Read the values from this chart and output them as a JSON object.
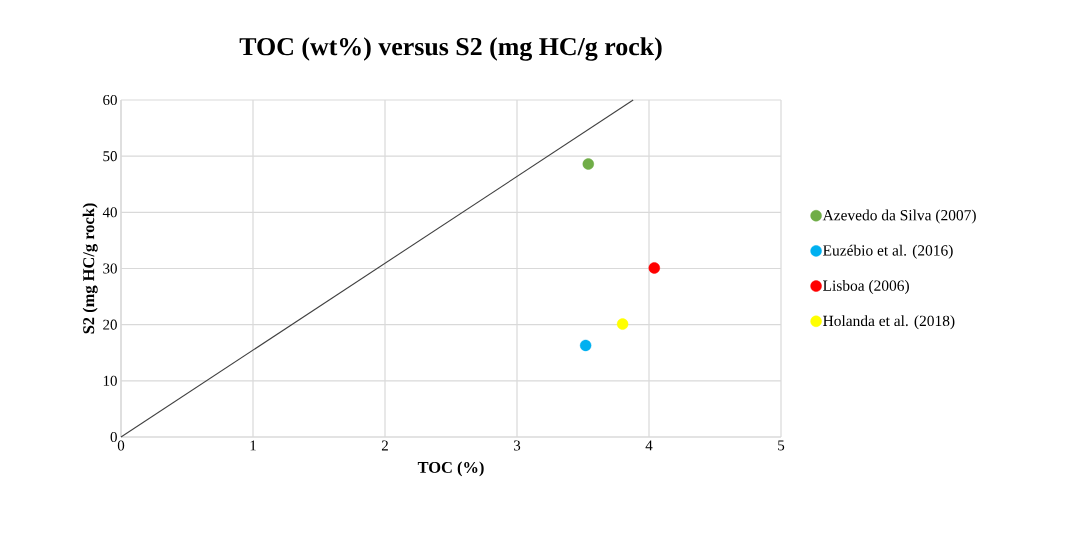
{
  "chart_data": {
    "type": "scatter",
    "title": "TOC (wt%) versus S2 (mg HC/g rock)",
    "xlabel": "TOC (%)",
    "ylabel": "S2 (mg HC/g rock)",
    "xlim": [
      0,
      5
    ],
    "ylim": [
      0,
      60
    ],
    "xticks": [
      0,
      1,
      2,
      3,
      4,
      5
    ],
    "yticks": [
      0,
      10,
      20,
      30,
      40,
      50,
      60
    ],
    "grid": true,
    "legend": "right",
    "series": [
      {
        "type": "line",
        "marker": "none",
        "color": "#404040",
        "x": [
          0,
          3.88
        ],
        "values": [
          0,
          60
        ]
      },
      {
        "name": "Azevedo da Silva (2007)",
        "marker": "circle",
        "color": "#70ad47",
        "x": [
          3.54
        ],
        "values": [
          48.6
        ]
      },
      {
        "name": "Euzébio et al. (2016)",
        "marker": "circle",
        "color": "#00b0f0",
        "x": [
          3.52
        ],
        "values": [
          16.3
        ]
      },
      {
        "name": "Lisboa (2006)",
        "marker": "circle",
        "color": "#ff0000",
        "x": [
          4.04
        ],
        "values": [
          30.1
        ]
      },
      {
        "name": "Holanda et al. (2018)",
        "marker": "circle",
        "color": "#ffff00",
        "x": [
          3.8
        ],
        "values": [
          20.1
        ]
      }
    ]
  }
}
